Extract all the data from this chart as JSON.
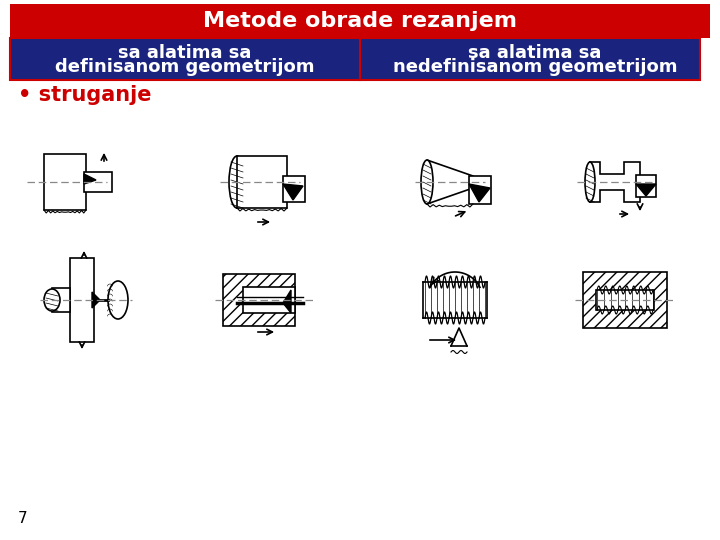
{
  "title": "Metode obrade rezanjem",
  "title_bg": "#cc0000",
  "title_text_color": "#ffffff",
  "header_bg": "#1a237e",
  "header_text_color": "#ffffff",
  "col1_header_line1": "sa alatima sa",
  "col1_header_line2": "definisanom geometrijom",
  "col2_header_line1": "sa alatima sa",
  "col2_header_line2": "nedefinisanom geometrijom",
  "bullet_text": "• struganje",
  "bullet_color": "#cc0000",
  "page_number": "7",
  "bg_color": "#ffffff",
  "divider_color": "#cc0000",
  "title_fontsize": 16,
  "header_fontsize": 13,
  "bullet_fontsize": 15
}
